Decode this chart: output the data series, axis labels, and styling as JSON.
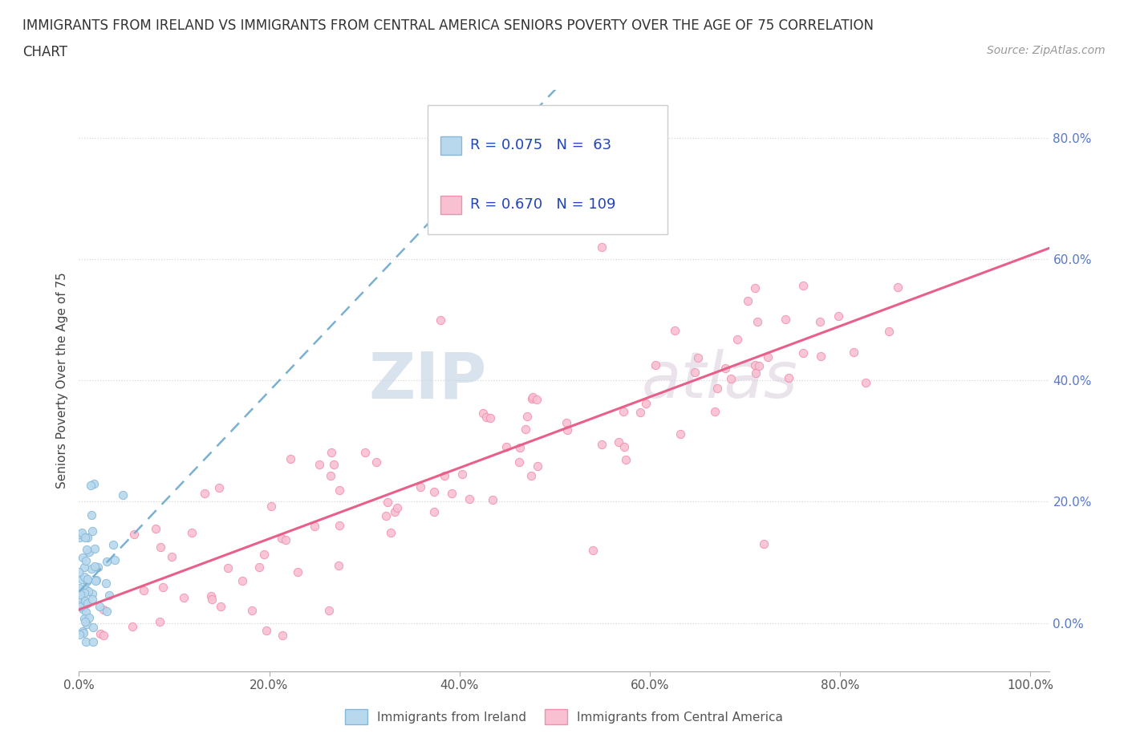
{
  "title_line1": "IMMIGRANTS FROM IRELAND VS IMMIGRANTS FROM CENTRAL AMERICA SENIORS POVERTY OVER THE AGE OF 75 CORRELATION",
  "title_line2": "CHART",
  "source": "Source: ZipAtlas.com",
  "ylabel": "Seniors Poverty Over the Age of 75",
  "xlim": [
    0.0,
    1.02
  ],
  "ylim": [
    -0.08,
    0.88
  ],
  "ireland_color": "#85b8d9",
  "ireland_face": "#b8d8ed",
  "central_america_color": "#f090b0",
  "central_america_face": "#f8c0d0",
  "ireland_R": 0.075,
  "ireland_N": 63,
  "central_america_R": 0.67,
  "central_america_N": 109,
  "legend_label_ireland": "Immigrants from Ireland",
  "legend_label_central": "Immigrants from Central America",
  "ireland_line_color": "#7ab0d0",
  "central_line_color": "#e8608a",
  "watermark_zip": "ZIP",
  "watermark_atlas": "atlas"
}
